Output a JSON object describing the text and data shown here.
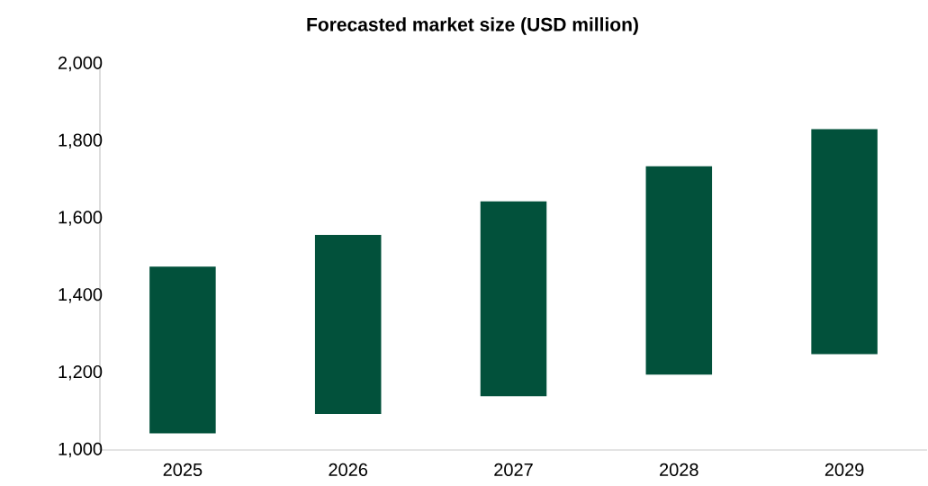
{
  "chart_data": {
    "type": "bar",
    "title": "Forecasted market size (USD million)",
    "categories": [
      "2025",
      "2026",
      "2027",
      "2028",
      "2029"
    ],
    "base": [
      1043,
      1093,
      1139,
      1195,
      1248
    ],
    "values": [
      432,
      464,
      505,
      540,
      583
    ],
    "color": "#02513b",
    "ylim": [
      1000,
      2000
    ],
    "yticks": [
      {
        "value": 1000,
        "label": "1,000"
      },
      {
        "value": 1200,
        "label": "1,200"
      },
      {
        "value": 1400,
        "label": "1,400"
      },
      {
        "value": 1600,
        "label": "1,600"
      },
      {
        "value": 1800,
        "label": "1,800"
      },
      {
        "value": 2000,
        "label": "2,000"
      }
    ]
  }
}
